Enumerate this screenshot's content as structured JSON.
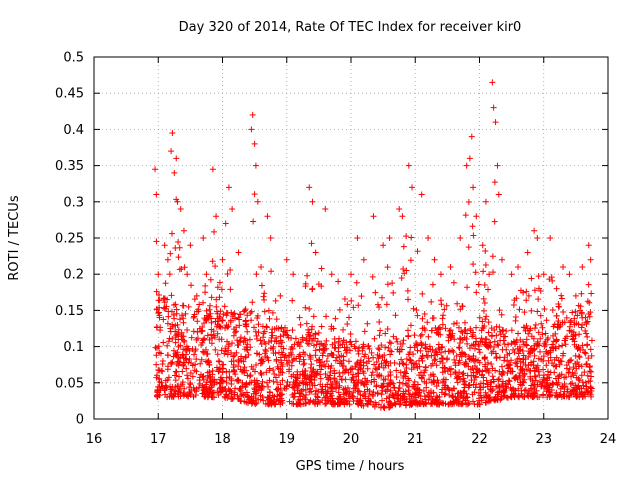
{
  "chart_data": {
    "type": "scatter",
    "title": "Day 320 of 2014, Rate Of TEC Index for receiver kir0",
    "xlabel": "GPS time / hours",
    "ylabel": "ROTI / TECUs",
    "xlim": [
      16,
      24
    ],
    "ylim": [
      0,
      0.5
    ],
    "xticks": [
      16,
      17,
      18,
      19,
      20,
      21,
      22,
      23,
      24
    ],
    "yticks": [
      0,
      0.05,
      0.1,
      0.15,
      0.2,
      0.25,
      0.3,
      0.35,
      0.4,
      0.45,
      0.5
    ],
    "xtick_labels": [
      "16",
      "17",
      "18",
      "19",
      "20",
      "21",
      "22",
      "23",
      "24"
    ],
    "ytick_labels": [
      "0",
      "0.05",
      "0.1",
      "0.15",
      "0.2",
      "0.25",
      "0.3",
      "0.35",
      "0.4",
      "0.45",
      "0.5"
    ],
    "grid": true,
    "marker": "plus",
    "color": "#ff0000",
    "x_data_range": [
      16.95,
      23.75
    ],
    "series": [
      {
        "name": "ROTI",
        "points": [
          [
            16.95,
            0.345
          ],
          [
            16.97,
            0.31
          ],
          [
            17.0,
            0.2
          ],
          [
            17.02,
            0.14
          ],
          [
            17.05,
            0.05
          ],
          [
            17.1,
            0.24
          ],
          [
            17.15,
            0.22
          ],
          [
            17.2,
            0.37
          ],
          [
            17.22,
            0.395
          ],
          [
            17.25,
            0.34
          ],
          [
            17.28,
            0.36
          ],
          [
            17.3,
            0.3
          ],
          [
            17.35,
            0.29
          ],
          [
            17.4,
            0.26
          ],
          [
            17.45,
            0.2
          ],
          [
            17.5,
            0.24
          ],
          [
            17.6,
            0.17
          ],
          [
            17.7,
            0.25
          ],
          [
            17.75,
            0.2
          ],
          [
            17.85,
            0.345
          ],
          [
            17.9,
            0.28
          ],
          [
            18.0,
            0.22
          ],
          [
            18.05,
            0.27
          ],
          [
            18.1,
            0.32
          ],
          [
            18.15,
            0.29
          ],
          [
            18.25,
            0.23
          ],
          [
            18.35,
            0.15
          ],
          [
            18.45,
            0.4
          ],
          [
            18.47,
            0.42
          ],
          [
            18.5,
            0.38
          ],
          [
            18.52,
            0.35
          ],
          [
            18.55,
            0.3
          ],
          [
            18.6,
            0.21
          ],
          [
            18.7,
            0.28
          ],
          [
            18.75,
            0.25
          ],
          [
            18.9,
            0.17
          ],
          [
            19.0,
            0.22
          ],
          [
            19.1,
            0.2
          ],
          [
            19.2,
            0.14
          ],
          [
            19.35,
            0.32
          ],
          [
            19.4,
            0.3
          ],
          [
            19.45,
            0.23
          ],
          [
            19.6,
            0.29
          ],
          [
            19.7,
            0.2
          ],
          [
            19.8,
            0.19
          ],
          [
            20.0,
            0.2
          ],
          [
            20.1,
            0.25
          ],
          [
            20.2,
            0.22
          ],
          [
            20.35,
            0.28
          ],
          [
            20.5,
            0.24
          ],
          [
            20.6,
            0.25
          ],
          [
            20.75,
            0.29
          ],
          [
            20.8,
            0.28
          ],
          [
            20.9,
            0.35
          ],
          [
            20.95,
            0.32
          ],
          [
            21.1,
            0.31
          ],
          [
            21.2,
            0.25
          ],
          [
            21.3,
            0.22
          ],
          [
            21.4,
            0.2
          ],
          [
            21.55,
            0.21
          ],
          [
            21.7,
            0.25
          ],
          [
            21.8,
            0.35
          ],
          [
            21.85,
            0.36
          ],
          [
            21.88,
            0.39
          ],
          [
            21.9,
            0.32
          ],
          [
            21.95,
            0.28
          ],
          [
            22.05,
            0.24
          ],
          [
            22.1,
            0.3
          ],
          [
            22.15,
            0.2
          ],
          [
            22.2,
            0.465
          ],
          [
            22.22,
            0.43
          ],
          [
            22.25,
            0.41
          ],
          [
            22.28,
            0.35
          ],
          [
            22.3,
            0.31
          ],
          [
            22.35,
            0.22
          ],
          [
            22.5,
            0.2
          ],
          [
            22.6,
            0.21
          ],
          [
            22.75,
            0.23
          ],
          [
            22.85,
            0.26
          ],
          [
            22.9,
            0.25
          ],
          [
            23.0,
            0.2
          ],
          [
            23.1,
            0.25
          ],
          [
            23.2,
            0.18
          ],
          [
            23.3,
            0.21
          ],
          [
            23.4,
            0.2
          ],
          [
            23.5,
            0.17
          ],
          [
            23.6,
            0.21
          ],
          [
            23.65,
            0.14
          ],
          [
            23.7,
            0.24
          ],
          [
            23.73,
            0.22
          ]
        ],
        "density_profile": {
          "description": "Dense cloud of points below the envelope; most values 0.01-0.15",
          "center_hours": [
            17,
            17.5,
            18,
            18.5,
            19,
            19.5,
            20,
            20.5,
            21,
            21.5,
            22,
            22.5,
            23,
            23.5
          ],
          "typical_low": [
            0.03,
            0.03,
            0.03,
            0.02,
            0.02,
            0.02,
            0.02,
            0.015,
            0.02,
            0.02,
            0.02,
            0.03,
            0.03,
            0.03
          ],
          "typical_high": [
            0.18,
            0.17,
            0.16,
            0.15,
            0.12,
            0.12,
            0.11,
            0.1,
            0.12,
            0.13,
            0.14,
            0.12,
            0.14,
            0.15
          ]
        }
      }
    ]
  }
}
